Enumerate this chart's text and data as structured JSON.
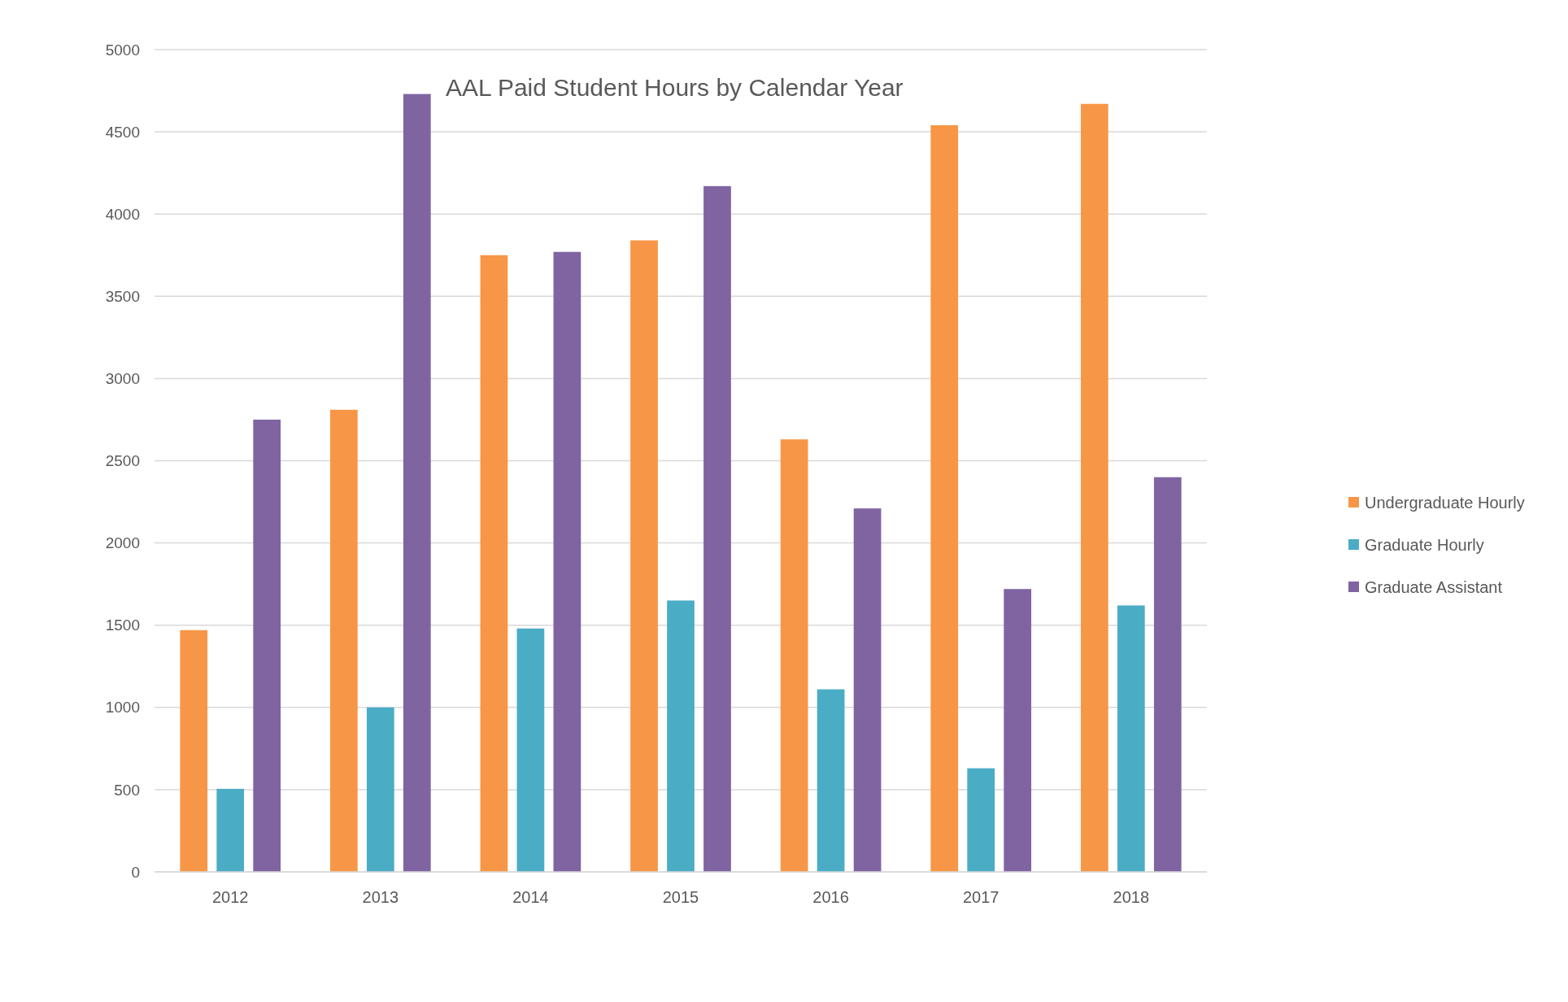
{
  "chart_data": {
    "type": "bar",
    "title": "AAL Paid Student Hours by Calendar Year",
    "categories": [
      "2012",
      "2013",
      "2014",
      "2015",
      "2016",
      "2017",
      "2018"
    ],
    "series": [
      {
        "name": "Undergraduate Hourly",
        "color": "#f79646",
        "values": [
          1470,
          2810,
          3750,
          3840,
          2630,
          4540,
          4670
        ]
      },
      {
        "name": "Graduate Hourly",
        "color": "#4bacc6",
        "values": [
          505,
          1000,
          1480,
          1650,
          1110,
          630,
          1620
        ]
      },
      {
        "name": "Graduate Assistant",
        "color": "#8064a2",
        "values": [
          2750,
          4730,
          3770,
          4170,
          2210,
          1720,
          2400
        ]
      }
    ],
    "ylim": [
      0,
      5000
    ],
    "yticks": [
      0,
      500,
      1000,
      1500,
      2000,
      2500,
      3000,
      3500,
      4000,
      4500,
      5000
    ],
    "grid": "y",
    "legend": "right"
  }
}
